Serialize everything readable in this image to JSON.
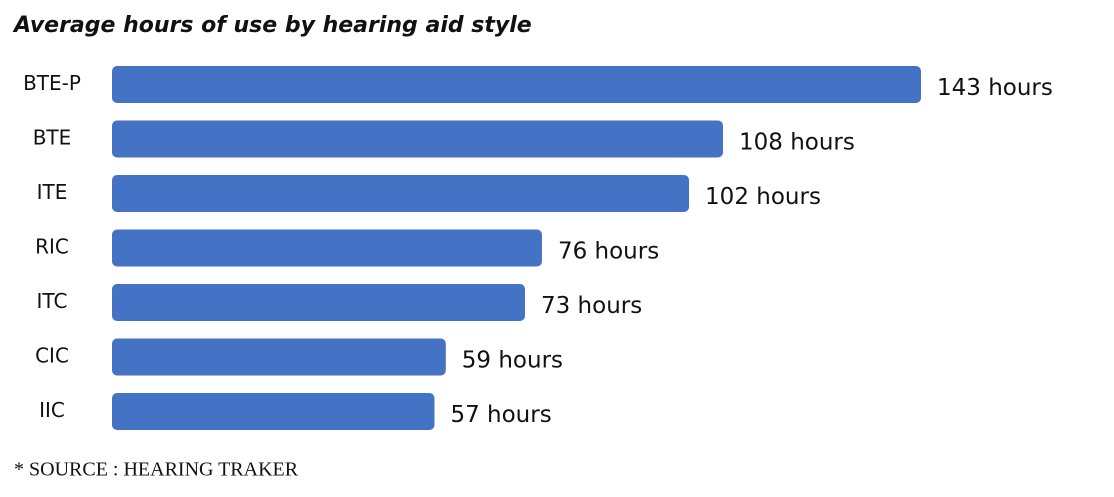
{
  "chart_data": {
    "type": "bar",
    "orientation": "horizontal",
    "title": "Average hours of use by hearing aid style",
    "categories": [
      "BTE-P",
      "BTE",
      "ITE",
      "RIC",
      "ITC",
      "CIC",
      "IIC"
    ],
    "values": [
      143,
      108,
      102,
      76,
      73,
      59,
      57
    ],
    "value_labels": [
      "143 hours",
      "108 hours",
      "102 hours",
      "76 hours",
      "73 hours",
      "59 hours",
      "57 hours"
    ],
    "color": "#4472c4",
    "source": "* SOURCE : HEARING TRAKER"
  }
}
